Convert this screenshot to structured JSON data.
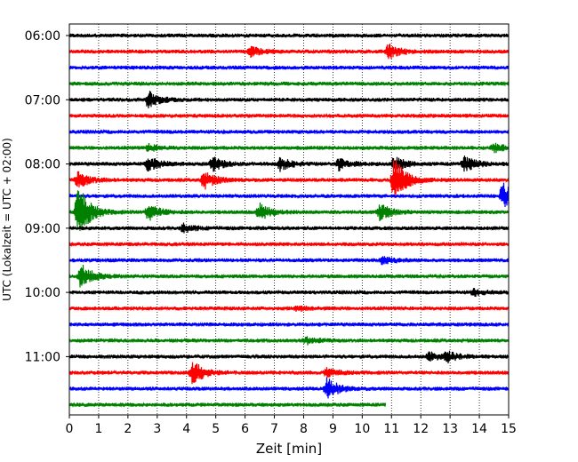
{
  "chart_data": {
    "type": "line",
    "title": "",
    "xlabel": "Zeit  [min]",
    "ylabel": "UTC (Lokalzeit = UTC + 02:00)",
    "xlim": [
      0,
      15
    ],
    "x_ticks": [
      "0",
      "1",
      "2",
      "3",
      "4",
      "5",
      "6",
      "7",
      "8",
      "9",
      "10",
      "11",
      "12",
      "13",
      "14",
      "15"
    ],
    "y_ticks": [
      "06:00",
      "07:00",
      "08:00",
      "09:00",
      "10:00",
      "11:00"
    ],
    "grid": "vertical dotted",
    "colors": [
      "#000000",
      "#ff0000",
      "#0000ff",
      "#008000"
    ],
    "row_interval_minutes": 15,
    "first_row": "06:00",
    "last_row": "11:45",
    "last_row_end_minute": 10.8,
    "events": [
      {
        "row": "06:15",
        "minute": 6.2,
        "amplitude": 0.6
      },
      {
        "row": "06:15",
        "minute": 10.9,
        "amplitude": 0.9
      },
      {
        "row": "07:00",
        "minute": 2.7,
        "amplitude": 1.0
      },
      {
        "row": "07:45",
        "minute": 2.7,
        "amplitude": 0.4
      },
      {
        "row": "07:45",
        "minute": 14.5,
        "amplitude": 0.5
      },
      {
        "row": "08:00",
        "minute": 2.7,
        "amplitude": 0.9
      },
      {
        "row": "08:00",
        "minute": 4.9,
        "amplitude": 0.8
      },
      {
        "row": "08:00",
        "minute": 7.2,
        "amplitude": 0.8
      },
      {
        "row": "08:00",
        "minute": 9.2,
        "amplitude": 0.7
      },
      {
        "row": "08:00",
        "minute": 11.1,
        "amplitude": 0.9
      },
      {
        "row": "08:00",
        "minute": 13.5,
        "amplitude": 1.0
      },
      {
        "row": "08:15",
        "minute": 0.3,
        "amplitude": 1.0
      },
      {
        "row": "08:15",
        "minute": 4.6,
        "amplitude": 1.1
      },
      {
        "row": "08:15",
        "minute": 11.1,
        "amplitude": 3.0
      },
      {
        "row": "08:30",
        "minute": 14.8,
        "amplitude": 1.6
      },
      {
        "row": "08:45",
        "minute": 0.3,
        "amplitude": 3.5
      },
      {
        "row": "08:45",
        "minute": 2.7,
        "amplitude": 1.0
      },
      {
        "row": "08:45",
        "minute": 6.5,
        "amplitude": 1.0
      },
      {
        "row": "08:45",
        "minute": 10.6,
        "amplitude": 1.0
      },
      {
        "row": "09:00",
        "minute": 3.9,
        "amplitude": 0.5
      },
      {
        "row": "09:30",
        "minute": 10.7,
        "amplitude": 0.5
      },
      {
        "row": "09:45",
        "minute": 0.4,
        "amplitude": 1.5
      },
      {
        "row": "10:00",
        "minute": 13.8,
        "amplitude": 0.4
      },
      {
        "row": "10:15",
        "minute": 7.8,
        "amplitude": 0.3
      },
      {
        "row": "10:45",
        "minute": 8.1,
        "amplitude": 0.4
      },
      {
        "row": "11:00",
        "minute": 12.3,
        "amplitude": 0.5
      },
      {
        "row": "11:00",
        "minute": 12.9,
        "amplitude": 0.6
      },
      {
        "row": "11:15",
        "minute": 4.2,
        "amplitude": 1.6
      },
      {
        "row": "11:15",
        "minute": 8.8,
        "amplitude": 0.5
      },
      {
        "row": "11:30",
        "minute": 8.8,
        "amplitude": 1.3
      }
    ]
  }
}
